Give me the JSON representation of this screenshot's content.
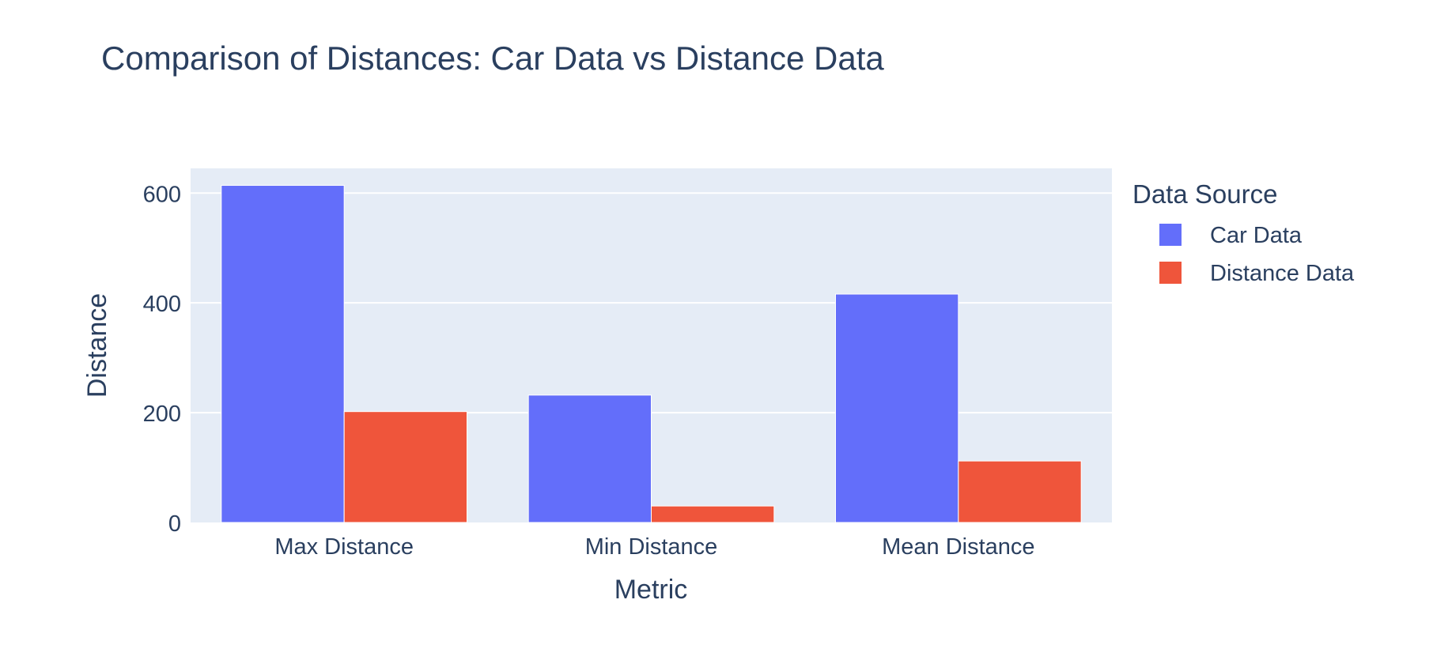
{
  "chart_data": {
    "type": "bar",
    "title": "Comparison of Distances: Car Data vs Distance Data",
    "xlabel": "Metric",
    "ylabel": "Distance",
    "categories": [
      "Max Distance",
      "Min Distance",
      "Mean Distance"
    ],
    "series": [
      {
        "name": "Car Data",
        "values": [
          614,
          232,
          416
        ],
        "color": "#636efa"
      },
      {
        "name": "Distance Data",
        "values": [
          202,
          30,
          112
        ],
        "color": "#ef553b"
      }
    ],
    "ylim": [
      0,
      645
    ],
    "yticks": [
      0,
      200,
      400,
      600
    ],
    "legend": {
      "title": "Data Source",
      "position": "right"
    },
    "grid": true,
    "plot_background": "#e5ecf6"
  }
}
